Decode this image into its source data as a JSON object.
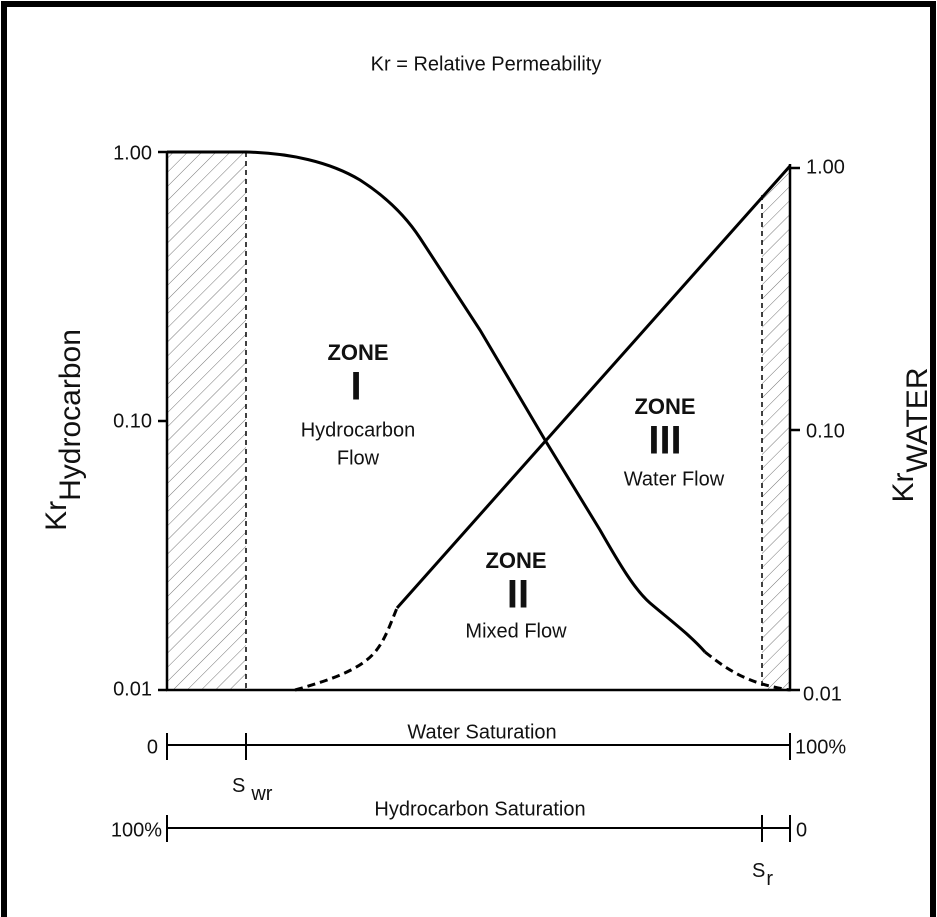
{
  "title": "Kr = Relative Permeability",
  "left_axis": {
    "label": "Kr",
    "label_sub": "Hydrocarbon",
    "ticks": [
      "1.00",
      "0.10",
      "0.01"
    ]
  },
  "right_axis": {
    "label": "Kr",
    "label_sub": "WATER",
    "ticks": [
      "1.00",
      "0.10",
      "0.01"
    ]
  },
  "zones": [
    {
      "heading": "ZONE",
      "numeral": "I",
      "lines": [
        "Hydrocarbon",
        "Flow"
      ]
    },
    {
      "heading": "ZONE",
      "numeral": "II",
      "lines": [
        "Mixed Flow"
      ]
    },
    {
      "heading": "ZONE",
      "numeral": "III",
      "lines": [
        "Water Flow"
      ]
    }
  ],
  "water_scale": {
    "title": "Water Saturation",
    "start": "0",
    "end": "100%",
    "marker": "S",
    "marker_sub": "wr"
  },
  "hydrocarbon_scale": {
    "title": "Hydrocarbon Saturation",
    "start": "100%",
    "end": "0",
    "marker": "S",
    "marker_sub": "r"
  }
}
